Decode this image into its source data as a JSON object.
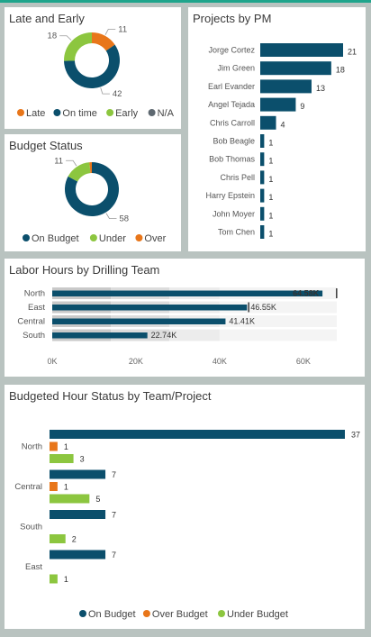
{
  "colors": {
    "navy": "#0b4f6c",
    "orange": "#e8761a",
    "green": "#8cc63f",
    "gray": "#5e6870",
    "band_dark": "#c9c9c9",
    "band_mid": "#dcdcdc",
    "band_light": "#ececec"
  },
  "late_early": {
    "title": "Late and Early",
    "legend": [
      "Late",
      "On time",
      "Early",
      "N/A"
    ],
    "chart_data": {
      "type": "pie",
      "variant": "donut",
      "categories": [
        "Late",
        "On time",
        "Early",
        "N/A"
      ],
      "values": [
        11,
        42,
        18,
        0
      ],
      "labels": [
        "11",
        "42",
        "18",
        ""
      ]
    }
  },
  "budget_status": {
    "title": "Budget Status",
    "legend": [
      "On Budget",
      "Under",
      "Over"
    ],
    "chart_data": {
      "type": "pie",
      "variant": "donut",
      "categories": [
        "On Budget",
        "Under",
        "Over"
      ],
      "values": [
        58,
        11,
        1
      ],
      "labels": [
        "58",
        "11",
        ""
      ]
    }
  },
  "projects_by_pm": {
    "title": "Projects by PM",
    "chart_data": {
      "type": "bar",
      "orientation": "horizontal",
      "categories": [
        "Jorge Cortez",
        "Jim Green",
        "Earl Evander",
        "Angel Tejada",
        "Chris Carroll",
        "Bob Beagle",
        "Bob Thomas",
        "Chris Pell",
        "Harry Epstein",
        "John Moyer",
        "Tom Chen"
      ],
      "values": [
        21,
        18,
        13,
        9,
        4,
        1,
        1,
        1,
        1,
        1,
        1
      ],
      "xlim": [
        0,
        24
      ]
    }
  },
  "labor_hours": {
    "title": "Labor Hours by Drilling Team",
    "chart_data": {
      "type": "bar",
      "variant": "bullet",
      "orientation": "horizontal",
      "categories": [
        "North",
        "East",
        "Central",
        "South"
      ],
      "values": [
        64580,
        46550,
        41410,
        22740
      ],
      "value_labels": [
        "64.58K",
        "46.55K",
        "41.41K",
        "22.74K"
      ],
      "targets": [
        68000,
        47000,
        null,
        null
      ],
      "band_thresholds": [
        14000,
        28000,
        40000,
        68000
      ],
      "xticks": [
        "0K",
        "20K",
        "40K",
        "60K"
      ],
      "xtick_values": [
        0,
        20000,
        40000,
        60000
      ],
      "xlim": [
        0,
        68000
      ]
    }
  },
  "budget_hour_status": {
    "title": "Budgeted Hour Status by Team/Project",
    "legend": [
      "On Budget",
      "Over Budget",
      "Under Budget"
    ],
    "chart_data": {
      "type": "bar",
      "orientation": "horizontal",
      "categories": [
        "North",
        "Central",
        "South",
        "East"
      ],
      "series": [
        {
          "name": "On Budget",
          "values": [
            37,
            7,
            7,
            7
          ]
        },
        {
          "name": "Over Budget",
          "values": [
            1,
            1,
            0,
            0
          ]
        },
        {
          "name": "Under Budget",
          "values": [
            3,
            5,
            2,
            1
          ]
        }
      ],
      "xlim": [
        0,
        37
      ]
    }
  }
}
